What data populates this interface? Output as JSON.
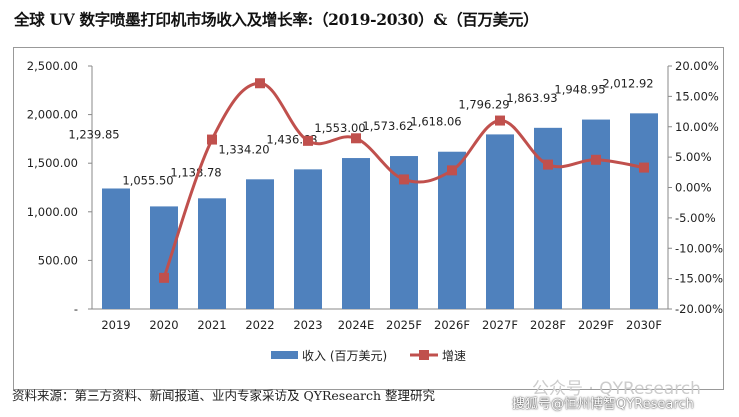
{
  "chart_data": {
    "type": "bar+line",
    "title": "全球 UV 数字喷墨打印机市场收入及增长率:（2019-2030）&（百万美元）",
    "categories": [
      "2019",
      "2020",
      "2021",
      "2022",
      "2023",
      "2024E",
      "2025F",
      "2026F",
      "2027F",
      "2028F",
      "2029F",
      "2030F"
    ],
    "series": [
      {
        "name": "收入 (百万美元)",
        "type": "bar",
        "axis": "left",
        "color": "#4F81BD",
        "values": [
          1239.85,
          1055.5,
          1138.78,
          1334.2,
          1436.63,
          1553.0,
          1573.62,
          1618.06,
          1796.29,
          1863.93,
          1948.95,
          2012.92
        ],
        "labels": [
          "1,239.85",
          "1,055.50",
          "1,138.78",
          "1,334.20",
          "1,436.63",
          "1,553.00",
          "1,573.62",
          "1,618.06",
          "1,796.29",
          "1,863.93",
          "1,948.95",
          "2,012.92"
        ]
      },
      {
        "name": "增速",
        "type": "line",
        "axis": "right",
        "color": "#C0504D",
        "values": [
          null,
          -14.87,
          7.89,
          17.16,
          7.68,
          8.1,
          1.33,
          2.82,
          11.02,
          3.77,
          4.56,
          3.28
        ]
      }
    ],
    "left_axis": {
      "range": [
        0,
        2500
      ],
      "ticks": [
        "-",
        "500.00",
        "1,000.00",
        "1,500.00",
        "2,000.00",
        "2,500.00"
      ]
    },
    "right_axis": {
      "range": [
        -20,
        20
      ],
      "ticks": [
        "-20.00%",
        "-15.00%",
        "-10.00%",
        "-5.00%",
        "0.00%",
        "5.00%",
        "10.00%",
        "15.00%",
        "20.00%"
      ]
    },
    "grid": false,
    "legend": "bottom"
  },
  "source": "资料来源：第三方资料、新闻报道、业内专家采访及 QYResearch 整理研究",
  "watermark": {
    "line1": "公众号 · QYResearch",
    "line2": "搜狐号@恒州博智QYResearch"
  }
}
